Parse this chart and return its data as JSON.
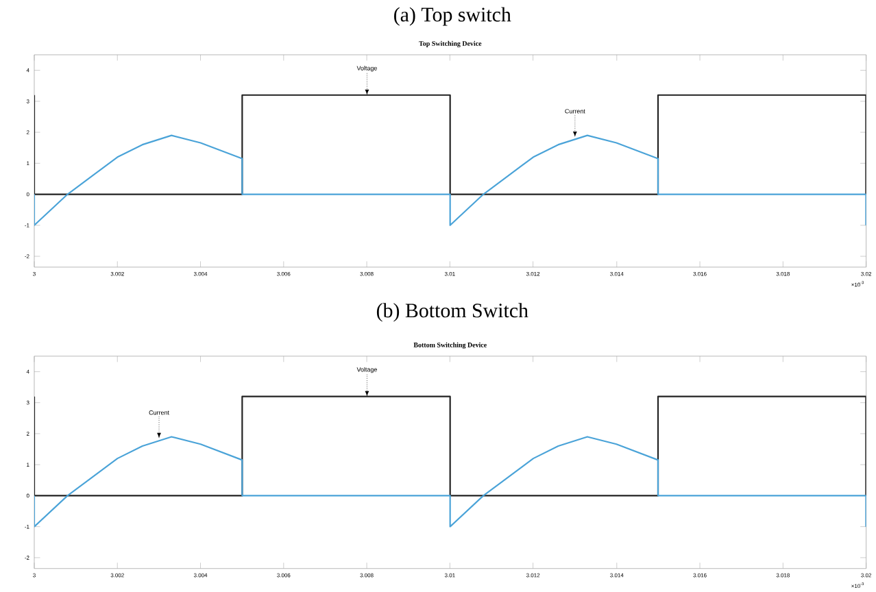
{
  "chart_data": [
    {
      "type": "line",
      "subtitle": "(a) Top switch",
      "title": "Top Switching Device",
      "xlim": [
        3,
        3.02
      ],
      "ylim": [
        -2.35,
        4.5
      ],
      "xticks": [
        3,
        3.002,
        3.004,
        3.006,
        3.008,
        3.01,
        3.012,
        3.014,
        3.016,
        3.018,
        3.02
      ],
      "yticks": [
        -2,
        -1,
        0,
        1,
        2,
        3,
        4
      ],
      "series": [
        {
          "type": "line",
          "color": "#222222",
          "x": [
            3,
            3,
            3.005,
            3.005,
            3.01,
            3.01,
            3.015,
            3.015,
            3.02,
            3.02
          ],
          "values": [
            3.2,
            0,
            0,
            3.2,
            3.2,
            0,
            0,
            3.2,
            3.2,
            0
          ]
        },
        {
          "type": "line",
          "color": "#4aa3d8",
          "x": [
            3,
            3,
            3.0008,
            3.002,
            3.0026,
            3.0033,
            3.004,
            3.005,
            3.005,
            3.01,
            3.01,
            3.0108,
            3.012,
            3.0126,
            3.0133,
            3.014,
            3.015,
            3.015,
            3.02,
            3.02
          ],
          "values": [
            0,
            -1,
            0,
            1.2,
            1.6,
            1.9,
            1.66,
            1.15,
            0,
            0,
            -1,
            0,
            1.2,
            1.6,
            1.9,
            1.66,
            1.15,
            0,
            0,
            -1
          ]
        }
      ],
      "annotations": [
        {
          "text": "Voltage",
          "x": 3.008,
          "y": 3.2
        },
        {
          "text": "Current",
          "x": 3.013,
          "y": 1.85
        },
        "×10$^{-3}$"
      ]
    },
    {
      "type": "line",
      "subtitle": "(b) Bottom Switch",
      "title": "Bottom Switching Device",
      "xlim": [
        3,
        3.02
      ],
      "ylim": [
        -2.35,
        4.5
      ],
      "xticks": [
        3,
        3.002,
        3.004,
        3.006,
        3.008,
        3.01,
        3.012,
        3.014,
        3.016,
        3.018,
        3.02
      ],
      "yticks": [
        -2,
        -1,
        0,
        1,
        2,
        3,
        4
      ],
      "series": [
        {
          "type": "line",
          "color": "#222222",
          "x": [
            3,
            3,
            3.005,
            3.005,
            3.01,
            3.01,
            3.015,
            3.015,
            3.02,
            3.02
          ],
          "values": [
            3.2,
            0,
            0,
            3.2,
            3.2,
            0,
            0,
            3.2,
            3.2,
            0
          ]
        },
        {
          "type": "line",
          "color": "#4aa3d8",
          "x": [
            3,
            3,
            3.0008,
            3.002,
            3.0026,
            3.0033,
            3.004,
            3.005,
            3.005,
            3.01,
            3.01,
            3.0108,
            3.012,
            3.0126,
            3.0133,
            3.014,
            3.015,
            3.015,
            3.02,
            3.02
          ],
          "values": [
            0,
            -1,
            0,
            1.2,
            1.6,
            1.9,
            1.66,
            1.15,
            0,
            0,
            -1,
            0,
            1.2,
            1.6,
            1.9,
            1.66,
            1.15,
            0,
            0,
            -1
          ]
        }
      ],
      "annotations": [
        {
          "text": "Voltage",
          "x": 3.008,
          "y": 3.2
        },
        {
          "text": "Current",
          "x": 3.003,
          "y": 1.85
        },
        "×10$^{-3}$"
      ]
    }
  ]
}
